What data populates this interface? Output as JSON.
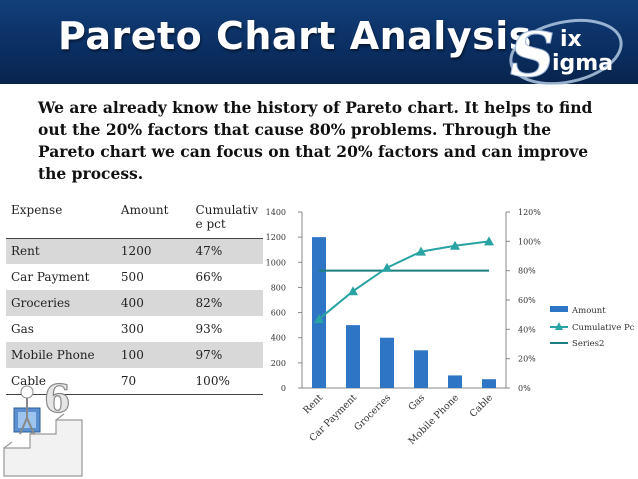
{
  "header": {
    "title": "Pareto Chart Analysis"
  },
  "logo": {
    "letters": [
      "S",
      "ix",
      "igma"
    ]
  },
  "intro": {
    "text": "We are already know the history of Pareto chart. It helps to find out the 20% factors that cause 80% problems. Through the Pareto chart we can focus on that 20% factors and can improve the process."
  },
  "table": {
    "headers": [
      "Expense",
      "Amount",
      "Cumulativ e pct"
    ],
    "rows": [
      [
        "Rent",
        "1200",
        "47%"
      ],
      [
        "Car Payment",
        "500",
        "66%"
      ],
      [
        "Groceries",
        "400",
        "82%"
      ],
      [
        "Gas",
        "300",
        "93%"
      ],
      [
        "Mobile Phone",
        "100",
        "97%"
      ],
      [
        "Cable",
        "70",
        "100%"
      ]
    ]
  },
  "colors": {
    "header": "#0b2f63",
    "bar": "#2e75c6",
    "line": "#29a3a3",
    "series2": "#1c7e7e"
  },
  "chart_data": {
    "type": "bar",
    "categories": [
      "Rent",
      "Car Payment",
      "Groceries",
      "Gas",
      "Mobile Phone",
      "Cable"
    ],
    "series": [
      {
        "name": "Amount",
        "type": "bar",
        "axis": "left",
        "values": [
          1200,
          500,
          400,
          300,
          100,
          70
        ]
      },
      {
        "name": "Cumulative Pct",
        "type": "line",
        "axis": "right",
        "values": [
          47,
          66,
          82,
          93,
          97,
          100
        ]
      },
      {
        "name": "Series2",
        "type": "line",
        "axis": "right",
        "values": [
          80,
          80,
          80,
          80,
          80,
          80
        ]
      }
    ],
    "y_left": {
      "ticks": [
        "0",
        "200",
        "400",
        "600",
        "800",
        "1000",
        "1200",
        "1400"
      ],
      "range": [
        0,
        1400
      ]
    },
    "y_right": {
      "ticks": [
        "0%",
        "20%",
        "40%",
        "60%",
        "80%",
        "100%",
        "120%"
      ],
      "range": [
        0,
        120
      ]
    },
    "legend": {
      "placement": "right"
    },
    "grid": false
  }
}
